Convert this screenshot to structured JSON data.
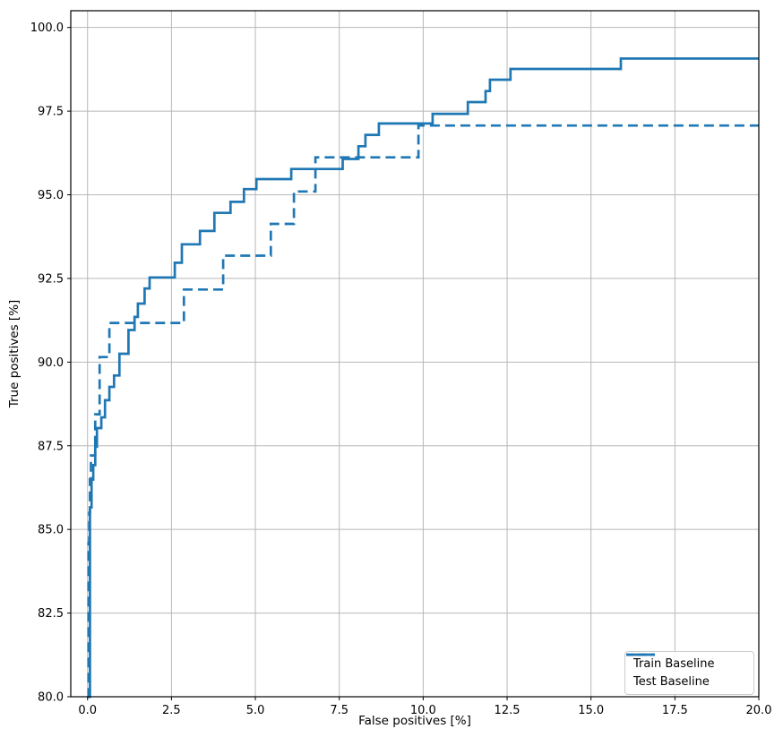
{
  "chart_data": {
    "type": "line",
    "subtype": "step-roc",
    "title": "",
    "xlabel": "False positives [%]",
    "ylabel": "True positives [%]",
    "xlim": [
      -0.5,
      20
    ],
    "ylim": [
      80,
      100.5
    ],
    "xticks": [
      0,
      2.5,
      5,
      7.5,
      10,
      12.5,
      15,
      17.5,
      20
    ],
    "xtick_labels": [
      "0.0",
      "2.5",
      "5.0",
      "7.5",
      "10.0",
      "12.5",
      "15.0",
      "17.5",
      "20.0"
    ],
    "yticks": [
      80,
      82.5,
      85,
      87.5,
      90,
      92.5,
      95,
      97.5,
      100
    ],
    "ytick_labels": [
      "80.0",
      "82.5",
      "85.0",
      "87.5",
      "90.0",
      "92.5",
      "95.0",
      "97.5",
      "100.0"
    ],
    "grid": true,
    "legend_position": "lower right",
    "colors": {
      "line": "#1f77b4",
      "grid": "#b8b8b8",
      "spine": "#000000",
      "text": "#000000"
    },
    "series": [
      {
        "name": "Train Baseline",
        "style": "solid",
        "step_points": [
          [
            0.0,
            80.0
          ],
          [
            0.07,
            85.66
          ],
          [
            0.12,
            86.49
          ],
          [
            0.17,
            86.92
          ],
          [
            0.23,
            87.47
          ],
          [
            0.28,
            88.03
          ],
          [
            0.41,
            88.35
          ],
          [
            0.52,
            88.86
          ],
          [
            0.65,
            89.26
          ],
          [
            0.79,
            89.6
          ],
          [
            0.95,
            90.25
          ],
          [
            1.22,
            90.96
          ],
          [
            1.4,
            91.35
          ],
          [
            1.5,
            91.75
          ],
          [
            1.7,
            92.2
          ],
          [
            1.85,
            92.53
          ],
          [
            2.6,
            92.97
          ],
          [
            2.81,
            93.52
          ],
          [
            3.35,
            93.92
          ],
          [
            3.78,
            94.46
          ],
          [
            4.26,
            94.79
          ],
          [
            4.66,
            95.17
          ],
          [
            5.03,
            95.47
          ],
          [
            6.07,
            95.77
          ],
          [
            7.6,
            96.07
          ],
          [
            8.07,
            96.45
          ],
          [
            8.28,
            96.79
          ],
          [
            8.68,
            97.13
          ],
          [
            10.28,
            97.42
          ],
          [
            11.33,
            97.77
          ],
          [
            11.86,
            98.1
          ],
          [
            11.99,
            98.44
          ],
          [
            12.6,
            98.76
          ],
          [
            15.89,
            99.07
          ]
        ]
      },
      {
        "name": "Test Baseline",
        "style": "dashed",
        "step_points": [
          [
            0.0,
            80.0
          ],
          [
            0.03,
            84.6
          ],
          [
            0.05,
            85.5
          ],
          [
            0.07,
            86.5
          ],
          [
            0.1,
            87.21
          ],
          [
            0.23,
            88.44
          ],
          [
            0.36,
            90.15
          ],
          [
            0.65,
            91.17
          ],
          [
            2.87,
            92.17
          ],
          [
            4.04,
            93.18
          ],
          [
            5.46,
            94.13
          ],
          [
            6.15,
            95.1
          ],
          [
            6.79,
            96.12
          ],
          [
            9.86,
            97.07
          ]
        ]
      }
    ]
  },
  "legend": {
    "items": [
      {
        "label": "Train Baseline"
      },
      {
        "label": "Test Baseline"
      }
    ]
  }
}
